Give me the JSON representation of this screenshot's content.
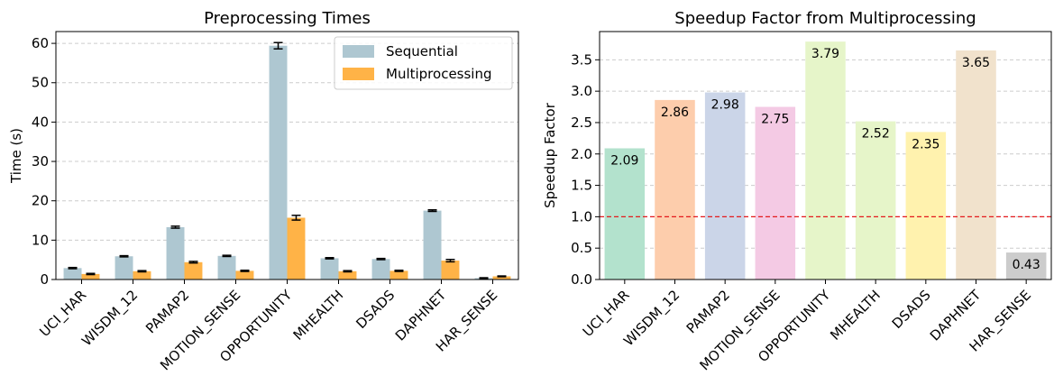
{
  "chart_data": [
    {
      "type": "bar",
      "title": "Preprocessing Times",
      "xlabel": "",
      "ylabel": "Time (s)",
      "ylim": [
        0,
        63
      ],
      "yticks": [
        0,
        10,
        20,
        30,
        40,
        50,
        60
      ],
      "grid": "y-dashed",
      "legend_position": "top-right",
      "categories": [
        "UCI_HAR",
        "WISDM_12",
        "PAMAP2",
        "MOTION_SENSE",
        "OPPORTUNITY",
        "MHEALTH",
        "DSADS",
        "DAPHNET",
        "HAR_SENSE"
      ],
      "series": [
        {
          "name": "Sequential",
          "color": "#aec7d1",
          "values": [
            2.9,
            5.9,
            13.3,
            6.0,
            59.4,
            5.4,
            5.2,
            17.5,
            0.35
          ],
          "errors": [
            0.15,
            0.15,
            0.25,
            0.15,
            0.8,
            0.15,
            0.15,
            0.2,
            0.1
          ]
        },
        {
          "name": "Multiprocessing",
          "color": "#ffb347",
          "values": [
            1.4,
            2.1,
            4.4,
            2.2,
            15.7,
            2.1,
            2.2,
            4.8,
            0.8
          ],
          "errors": [
            0.15,
            0.15,
            0.2,
            0.15,
            0.6,
            0.15,
            0.15,
            0.3,
            0.1
          ]
        }
      ]
    },
    {
      "type": "bar",
      "title": "Speedup Factor from Multiprocessing",
      "xlabel": "",
      "ylabel": "Speedup Factor",
      "ylim": [
        0,
        3.95
      ],
      "yticks": [
        "0.0",
        "0.5",
        "1.0",
        "1.5",
        "2.0",
        "2.5",
        "3.0",
        "3.5"
      ],
      "grid": "y-dashed",
      "reference_line": {
        "y": 1.0,
        "color": "#e41a1c",
        "style": "dashed"
      },
      "categories": [
        "UCI_HAR",
        "WISDM_12",
        "PAMAP2",
        "MOTION_SENSE",
        "OPPORTUNITY",
        "MHEALTH",
        "DSADS",
        "DAPHNET",
        "HAR_SENSE"
      ],
      "values": [
        2.09,
        2.86,
        2.98,
        2.75,
        3.79,
        2.52,
        2.35,
        3.65,
        0.43
      ],
      "labels": [
        "2.09",
        "2.86",
        "2.98",
        "2.75",
        "3.79",
        "2.52",
        "2.35",
        "3.65",
        "0.43"
      ],
      "colors": [
        "#b3e2cd",
        "#fdcdac",
        "#cbd5e8",
        "#f4cae4",
        "#e6f5c9",
        "#e6f5c9",
        "#fff2ae",
        "#f1e2cc",
        "#cccccc"
      ]
    }
  ]
}
